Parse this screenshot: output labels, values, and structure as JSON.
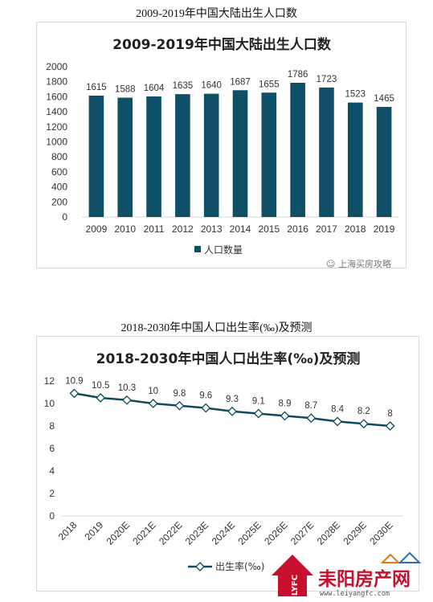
{
  "caption1": "2009-2019年中国大陆出生人口数",
  "caption2": "2018-2030年中国人口出生率(‰)及预测",
  "watermark1": "上海买房攻略",
  "logo": {
    "text": "耒阳房产网",
    "side": "LYFC",
    "url": "www.leiyangfc.com",
    "color": "#c8102e"
  },
  "chart_data": [
    {
      "type": "bar",
      "title": "2009-2019年中国大陆出生人口数",
      "categories": [
        "2009",
        "2010",
        "2011",
        "2012",
        "2013",
        "2014",
        "2015",
        "2016",
        "2017",
        "2018",
        "2019"
      ],
      "series": [
        {
          "name": "人口数量",
          "values": [
            1615,
            1588,
            1604,
            1635,
            1640,
            1687,
            1655,
            1786,
            1723,
            1523,
            1465
          ],
          "color": "#0f5068"
        }
      ],
      "yticks": [
        "0",
        "200",
        "400",
        "600",
        "800",
        "1000",
        "1200",
        "1400",
        "1600",
        "1800",
        "2000"
      ],
      "ylim": [
        0,
        2000
      ],
      "grid": false,
      "legend": "bottom"
    },
    {
      "type": "line",
      "title": "2018-2030年中国人口出生率(‰)及预测",
      "categories": [
        "2018",
        "2019",
        "2020E",
        "2021E",
        "2022E",
        "2023E",
        "2024E",
        "2025E",
        "2026E",
        "2027E",
        "2028E",
        "2029E",
        "2030E"
      ],
      "series": [
        {
          "name": "出生率(‰)",
          "values": [
            10.9,
            10.5,
            10.3,
            10,
            9.8,
            9.6,
            9.3,
            9.1,
            8.9,
            8.7,
            8.4,
            8.2,
            8
          ],
          "color": "#0f4a5e"
        }
      ],
      "yticks": [
        "0",
        "2",
        "4",
        "6",
        "8",
        "10",
        "12"
      ],
      "ylim": [
        0,
        12
      ],
      "grid": false,
      "legend": "bottom"
    }
  ]
}
